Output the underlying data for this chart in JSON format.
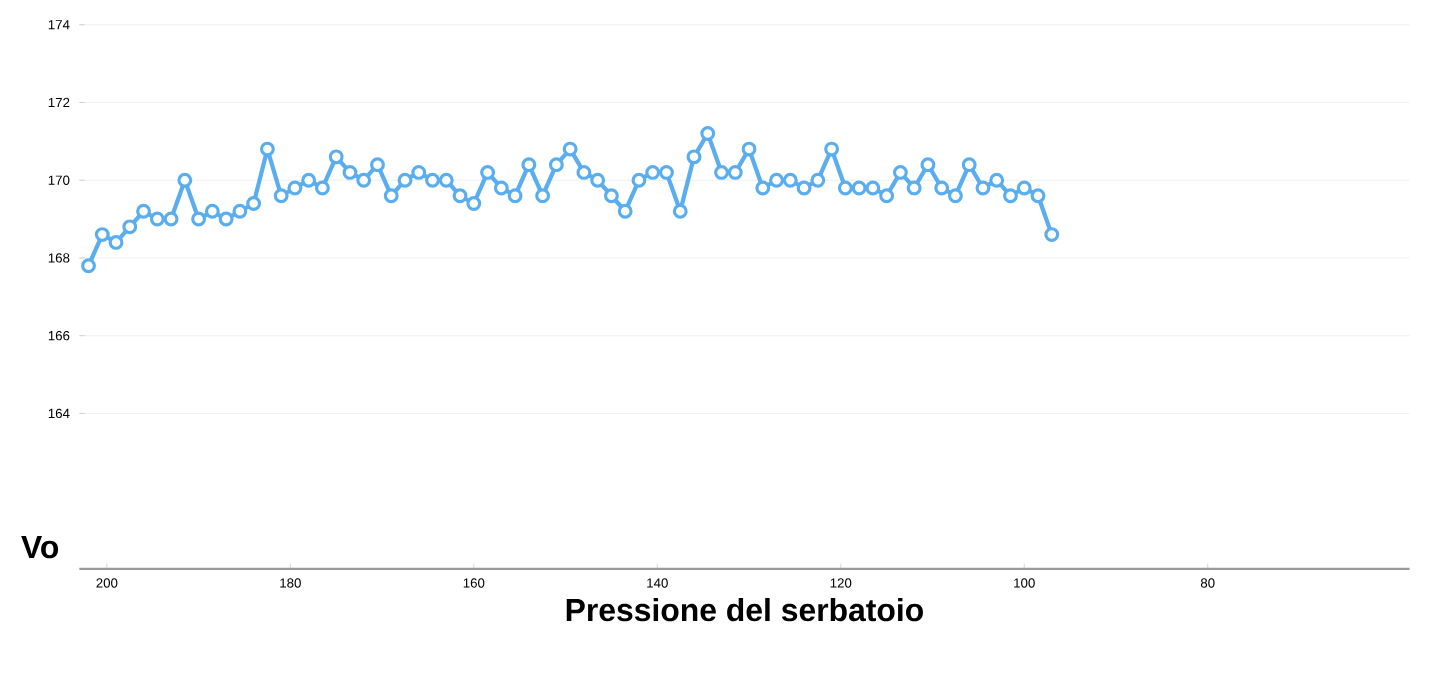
{
  "chart_data": {
    "type": "line",
    "xlabel": "Pressione del serbatoio",
    "ylabel": "Vo",
    "x": [
      202,
      200.5,
      199,
      197.5,
      196,
      194.5,
      193,
      191.5,
      190,
      188.5,
      187,
      185.5,
      184,
      182.5,
      181,
      179.5,
      178,
      176.5,
      175,
      173.5,
      172,
      170.5,
      169,
      167.5,
      166,
      164.5,
      163,
      161.5,
      160,
      158.5,
      157,
      155.5,
      154,
      152.5,
      151,
      149.5,
      148,
      146.5,
      145,
      143.5,
      142,
      140.5,
      139,
      137.5,
      136,
      134.5,
      133,
      131.5,
      130,
      128.5,
      127,
      125.5,
      124,
      122.5,
      121,
      119.5,
      118,
      116.5,
      115,
      113.5,
      112,
      110.5,
      109,
      107.5,
      106,
      104.5,
      103,
      101.5,
      100,
      98.5,
      97
    ],
    "series": [
      {
        "color": "#5aaef0",
        "values": [
          167.8,
          168.6,
          168.4,
          168.8,
          169.2,
          169.0,
          169.0,
          170.0,
          169.0,
          169.2,
          169.0,
          169.2,
          169.4,
          170.8,
          169.6,
          169.8,
          170.0,
          169.8,
          170.6,
          170.2,
          170.0,
          170.4,
          169.6,
          170.0,
          170.2,
          170.0,
          170.0,
          169.6,
          169.4,
          170.2,
          169.8,
          169.6,
          170.4,
          169.6,
          170.4,
          170.8,
          170.2,
          170.0,
          169.6,
          169.2,
          170.0,
          170.2,
          170.2,
          169.2,
          170.6,
          171.2,
          170.2,
          170.2,
          170.8,
          169.8,
          170.0,
          170.0,
          169.8,
          170.0,
          170.8,
          169.8,
          169.8,
          169.8,
          169.6,
          170.2,
          169.8,
          170.4,
          169.8,
          169.6,
          170.4,
          169.8,
          170.0,
          169.6,
          169.8,
          169.6,
          168.6
        ]
      }
    ],
    "xlim": [
      203,
      58
    ],
    "xticks": [
      200,
      180,
      160,
      140,
      120,
      100,
      80
    ],
    "ylim": [
      160,
      174
    ],
    "yticks": [
      164,
      166,
      168,
      170,
      172,
      174
    ],
    "grid": "y",
    "marker": "circle",
    "line_style": "solid"
  }
}
